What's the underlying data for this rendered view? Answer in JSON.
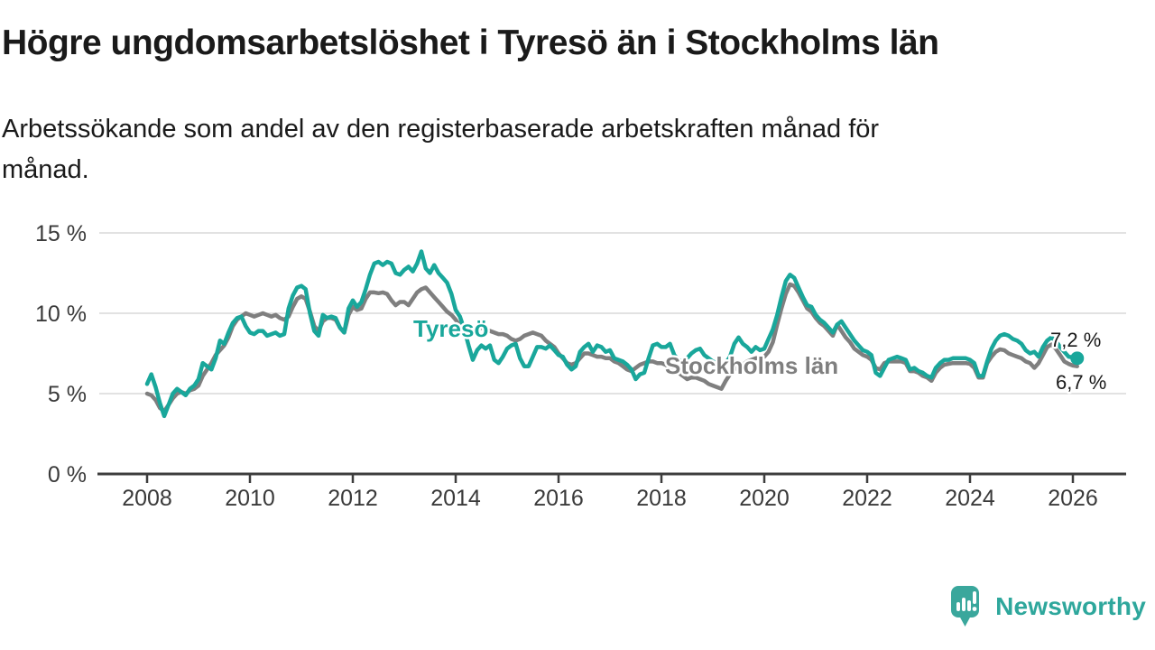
{
  "header": {
    "title": "Högre ungdomsarbetslöshet i Tyresö än i Stockholms län",
    "subtitle_line1": "Arbetssökande som andel av den registerbaserade arbetskraften månad för",
    "subtitle_line2": "månad."
  },
  "branding": {
    "logo_text": "Newsworthy",
    "logo_icon": "newsworthy-speech-bubble-bar-chart-icon",
    "logo_color": "#3aa79c"
  },
  "colors": {
    "accent_teal": "#19a79b",
    "neutral_gray": "#7f7f7f",
    "text_dark": "#1a1a1a",
    "axis_text": "#3a3a3a",
    "gridline": "#d9d9d9",
    "axis_line": "#3d3d3d",
    "background": "#ffffff"
  },
  "chart_data": {
    "type": "line",
    "title": "Högre ungdomsarbetslöshet i Tyresö än i Stockholms län",
    "subtitle": "Arbetssökande som andel av den registerbaserade arbetskraften månad för månad.",
    "unit": "%",
    "x_axis": {
      "tick_years": [
        2008,
        2010,
        2012,
        2014,
        2016,
        2018,
        2020,
        2022,
        2024,
        2026
      ],
      "range": [
        2007.05,
        2027.0
      ]
    },
    "y_axis": {
      "tick_values": [
        0,
        5,
        10,
        15
      ],
      "tick_labels": [
        "0 %",
        "5 %",
        "10 %",
        "15 %"
      ],
      "range": [
        0,
        15
      ],
      "grid": true
    },
    "legend_position": "inline-labels",
    "start_year": 2008,
    "points_per_year": 12,
    "series": [
      {
        "name": "Stockholms län",
        "color": "#7f7f7f",
        "end_label": "6,7 %",
        "end_dot": false,
        "values": [
          5.0,
          4.9,
          4.6,
          4.1,
          3.9,
          4.3,
          4.7,
          5.0,
          5.1,
          5.0,
          5.2,
          5.3,
          5.5,
          6.1,
          6.5,
          6.9,
          7.4,
          7.7,
          8.0,
          8.5,
          9.2,
          9.6,
          9.8,
          10.0,
          9.9,
          9.8,
          9.9,
          10.0,
          9.9,
          9.8,
          9.9,
          9.7,
          9.6,
          9.8,
          10.4,
          10.9,
          11.05,
          10.9,
          10.1,
          9.2,
          8.9,
          9.5,
          9.7,
          9.7,
          9.6,
          9.1,
          8.8,
          9.9,
          10.4,
          10.2,
          10.3,
          10.9,
          11.3,
          11.3,
          11.25,
          11.3,
          11.2,
          10.8,
          10.5,
          10.7,
          10.7,
          10.5,
          10.9,
          11.3,
          11.5,
          11.6,
          11.3,
          11.0,
          10.7,
          10.4,
          10.1,
          9.9,
          9.6,
          9.2,
          8.9,
          8.7,
          8.8,
          9.0,
          9.1,
          9.0,
          8.9,
          8.8,
          8.7,
          8.7,
          8.6,
          8.4,
          8.3,
          8.4,
          8.6,
          8.7,
          8.8,
          8.7,
          8.6,
          8.3,
          8.1,
          7.9,
          7.5,
          7.2,
          6.9,
          6.8,
          6.9,
          7.2,
          7.5,
          7.5,
          7.4,
          7.3,
          7.3,
          7.2,
          7.2,
          7.0,
          6.9,
          6.7,
          6.5,
          6.4,
          6.6,
          6.8,
          6.9,
          7.0,
          7.0,
          6.9,
          6.9,
          6.8,
          6.6,
          6.5,
          6.3,
          6.1,
          5.9,
          6.0,
          6.0,
          5.9,
          5.8,
          5.6,
          5.5,
          5.4,
          5.3,
          5.8,
          6.2,
          6.5,
          6.7,
          6.8,
          7.0,
          7.1,
          7.2,
          7.2,
          7.3,
          7.6,
          8.2,
          9.3,
          10.3,
          11.2,
          11.8,
          11.7,
          11.3,
          10.8,
          10.3,
          10.1,
          9.7,
          9.4,
          9.2,
          8.9,
          8.6,
          9.3,
          8.9,
          8.5,
          8.2,
          7.8,
          7.6,
          7.4,
          7.3,
          7.1,
          6.6,
          6.5,
          6.9,
          7.0,
          7.0,
          7.0,
          7.0,
          6.9,
          6.4,
          6.4,
          6.3,
          6.1,
          6.0,
          5.8,
          6.3,
          6.6,
          6.8,
          6.85,
          6.9,
          6.9,
          6.9,
          6.9,
          6.85,
          6.6,
          6.0,
          6.0,
          6.9,
          7.3,
          7.6,
          7.75,
          7.7,
          7.5,
          7.4,
          7.3,
          7.2,
          7.0,
          6.9,
          6.6,
          6.9,
          7.4,
          7.9,
          8.05,
          7.8,
          7.4,
          7.0,
          6.85,
          6.75,
          6.7
        ]
      },
      {
        "name": "Tyresö",
        "color": "#19a79b",
        "end_label": "7,2 %",
        "end_dot": true,
        "values": [
          5.6,
          6.2,
          5.4,
          4.4,
          3.6,
          4.3,
          5.0,
          5.3,
          5.1,
          4.9,
          5.3,
          5.5,
          5.9,
          6.9,
          6.7,
          6.5,
          7.2,
          8.3,
          8.1,
          8.8,
          9.4,
          9.7,
          9.8,
          9.2,
          8.8,
          8.7,
          8.9,
          8.9,
          8.6,
          8.7,
          8.8,
          8.6,
          8.7,
          10.3,
          11.1,
          11.6,
          11.7,
          11.5,
          10.0,
          8.9,
          8.6,
          9.9,
          9.7,
          9.8,
          9.7,
          9.1,
          8.8,
          10.3,
          10.8,
          10.4,
          10.7,
          11.5,
          12.4,
          13.1,
          13.2,
          13.0,
          13.2,
          13.1,
          12.5,
          12.4,
          12.7,
          12.9,
          12.6,
          13.1,
          13.85,
          12.8,
          12.5,
          13.0,
          12.5,
          12.2,
          11.9,
          11.2,
          10.2,
          9.8,
          9.0,
          8.0,
          7.1,
          7.7,
          8.0,
          7.8,
          8.0,
          7.1,
          6.9,
          7.3,
          7.8,
          8.0,
          8.1,
          7.2,
          6.7,
          6.7,
          7.3,
          7.9,
          7.9,
          7.8,
          8.0,
          7.7,
          7.4,
          7.3,
          6.8,
          6.5,
          6.7,
          7.6,
          7.9,
          8.1,
          7.6,
          8.0,
          7.9,
          7.6,
          7.7,
          7.2,
          7.1,
          7.0,
          6.8,
          6.5,
          5.9,
          6.2,
          6.3,
          7.2,
          8.0,
          8.1,
          7.9,
          7.9,
          8.1,
          7.4,
          7.1,
          7.0,
          7.2,
          7.5,
          7.7,
          7.8,
          7.4,
          7.2,
          7.0,
          6.9,
          6.8,
          6.9,
          7.3,
          8.1,
          8.5,
          8.1,
          7.9,
          7.6,
          7.9,
          7.7,
          7.8,
          8.4,
          9.0,
          9.9,
          11.0,
          12.0,
          12.4,
          12.2,
          11.6,
          11.0,
          10.5,
          10.4,
          9.9,
          9.6,
          9.4,
          9.1,
          8.8,
          9.3,
          9.5,
          9.1,
          8.7,
          8.3,
          8.0,
          7.7,
          7.6,
          7.4,
          6.3,
          6.1,
          6.6,
          7.1,
          7.2,
          7.3,
          7.2,
          7.1,
          6.5,
          6.6,
          6.4,
          6.3,
          6.1,
          6.0,
          6.6,
          6.9,
          7.1,
          7.1,
          7.2,
          7.2,
          7.2,
          7.2,
          7.1,
          6.9,
          6.1,
          6.1,
          7.0,
          7.8,
          8.3,
          8.6,
          8.7,
          8.6,
          8.4,
          8.3,
          8.1,
          7.7,
          7.5,
          7.6,
          7.3,
          7.9,
          8.3,
          8.5,
          8.3,
          7.9,
          7.6,
          7.3,
          7.25,
          7.2
        ]
      }
    ]
  }
}
